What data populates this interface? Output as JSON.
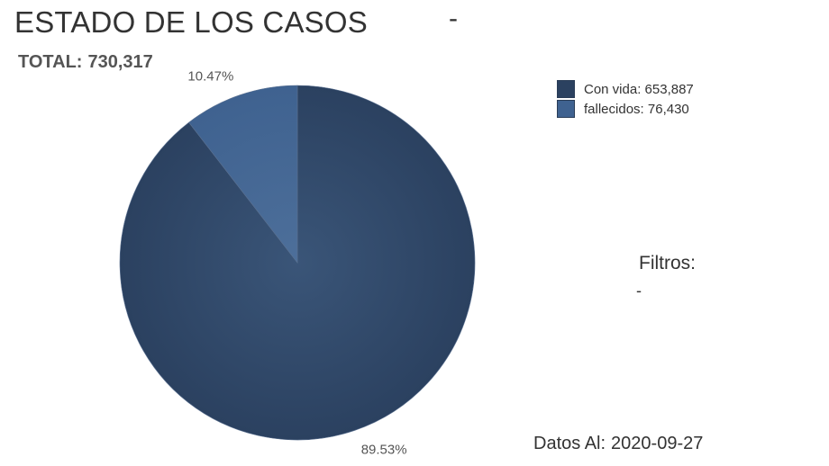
{
  "header": {
    "title": "ESTADO DE LOS CASOS",
    "title_suffix": "-",
    "total_label": "TOTAL:",
    "total_value": "730,317"
  },
  "filters": {
    "label": "Filtros:",
    "value": "-"
  },
  "footer": {
    "label": "Datos Al:",
    "date": "2020-09-27"
  },
  "chart_data": {
    "type": "pie",
    "slices": [
      {
        "label": "Con vida",
        "value": 653887,
        "display_value": "653,887",
        "percent_label": "89.53%",
        "color": "#2b4160",
        "color_light": "#3a5578"
      },
      {
        "label": "fallecidos",
        "value": 76430,
        "display_value": "76,430",
        "percent_label": "10.47%",
        "color": "#3f6290",
        "color_light": "#4d6f9a"
      }
    ],
    "legend_position": "top-right",
    "start_angle": "12 o'clock",
    "direction": "clockwise"
  }
}
